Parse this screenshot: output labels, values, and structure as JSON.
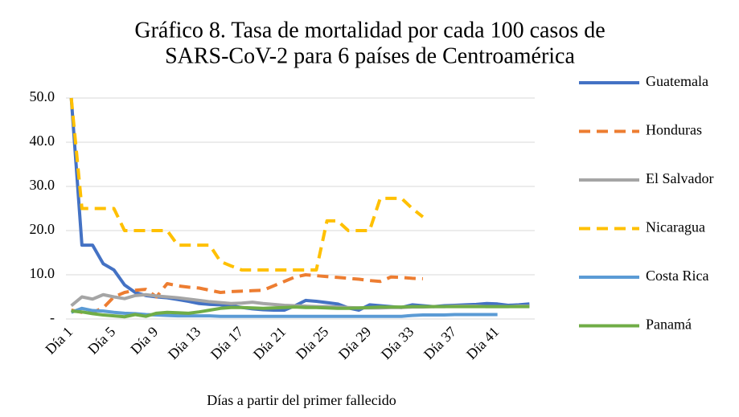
{
  "chart_data": {
    "type": "line",
    "title": [
      "Gráfico 8. Tasa de mortalidad por cada 100 casos de",
      "SARS-CoV-2 para 6 países de Centroamérica"
    ],
    "x_label": "Días a partir del primer fallecido",
    "categories": [
      "Día 1",
      null,
      null,
      null,
      "Día 5",
      null,
      null,
      null,
      "Día 9",
      null,
      null,
      null,
      "Día 13",
      null,
      null,
      null,
      "Día 17",
      null,
      null,
      null,
      "Día 21",
      null,
      null,
      null,
      "Día 25",
      null,
      null,
      null,
      "Día 29",
      null,
      null,
      null,
      "Día 33",
      null,
      null,
      null,
      "Día 37",
      null,
      null,
      null,
      "Día 41",
      null,
      null,
      null
    ],
    "ylim": [
      0,
      50
    ],
    "yticks": [
      {
        "value": 0,
        "label": "-"
      },
      {
        "value": 10,
        "label": "10.0"
      },
      {
        "value": 20,
        "label": "20.0"
      },
      {
        "value": 30,
        "label": "30.0"
      },
      {
        "value": 40,
        "label": "40.0"
      },
      {
        "value": 50,
        "label": "50.0"
      }
    ],
    "grid": true,
    "legend": "right",
    "series": [
      {
        "name": "Guatemala",
        "color": "#4472c4",
        "dashed": false,
        "values": [
          50,
          16.7,
          16.7,
          12.5,
          11.1,
          7.7,
          6,
          5.3,
          5,
          4.8,
          4.4,
          4,
          3.5,
          3.3,
          3.2,
          3,
          2.6,
          2.3,
          2.1,
          2,
          2,
          3,
          4.2,
          4,
          3.7,
          3.4,
          2.5,
          2,
          3.2,
          3,
          2.8,
          2.6,
          3.2,
          3,
          2.8,
          3,
          3.1,
          3.2,
          3.3,
          3.5,
          3.4,
          3.1,
          3.2,
          3.4
        ]
      },
      {
        "name": "Honduras",
        "color": "#ed7d31",
        "dashed": true,
        "values": [
          2,
          1.5,
          1.5,
          2.5,
          5,
          6,
          6.5,
          6.7,
          5,
          8,
          7.5,
          7.2,
          7,
          6.5,
          6,
          6.2,
          6.3,
          6.4,
          6.5,
          7.5,
          8.5,
          9.5,
          10,
          9.8,
          9.6,
          9.4,
          9.2,
          9,
          8.7,
          8.5,
          9.5,
          9.4,
          9.2,
          9.1,
          null,
          null,
          null,
          null,
          null,
          null,
          null,
          null,
          null,
          null
        ]
      },
      {
        "name": "El Salvador",
        "color": "#a5a5a5",
        "dashed": false,
        "values": [
          3,
          5,
          4.5,
          5.5,
          5,
          4.6,
          5.3,
          5.5,
          5.2,
          5,
          4.8,
          4.5,
          4.2,
          3.9,
          3.7,
          3.5,
          3.6,
          3.8,
          3.5,
          3.3,
          3.1,
          3,
          2.9,
          2.8,
          2.8,
          2.7,
          2.6,
          2.5,
          2.5,
          2.5,
          2.6,
          2.6,
          2.7,
          2.7,
          2.8,
          2.8,
          2.9,
          2.9,
          2.9,
          2.8,
          2.8,
          2.8,
          2.9,
          2.9
        ]
      },
      {
        "name": "Nicaragua",
        "color": "#ffc000",
        "dashed": true,
        "values": [
          50,
          25,
          25,
          25,
          25,
          20,
          20,
          20,
          20,
          20,
          16.7,
          16.7,
          16.7,
          16.7,
          13,
          12,
          11.1,
          11.1,
          11.1,
          11.1,
          11.1,
          11.1,
          11.1,
          11.1,
          22.2,
          22.2,
          20,
          20,
          20,
          27.3,
          27.3,
          27.3,
          25,
          23.1,
          null,
          null,
          null,
          null,
          null,
          null,
          null,
          null,
          null,
          null
        ]
      },
      {
        "name": "Costa Rica",
        "color": "#5b9bd5",
        "dashed": false,
        "values": [
          1.5,
          2.4,
          1.9,
          1.8,
          1.5,
          1.3,
          1.2,
          1,
          0.9,
          0.8,
          0.7,
          0.7,
          0.7,
          0.7,
          0.6,
          0.6,
          0.6,
          0.6,
          0.6,
          0.6,
          0.6,
          0.6,
          0.6,
          0.6,
          0.6,
          0.6,
          0.6,
          0.6,
          0.6,
          0.6,
          0.6,
          0.6,
          0.8,
          0.9,
          0.9,
          0.9,
          1,
          1,
          1,
          1,
          1,
          null,
          null,
          null
        ]
      },
      {
        "name": "Panamá",
        "color": "#70ad47",
        "dashed": false,
        "values": [
          1.8,
          1.6,
          1.2,
          0.9,
          0.7,
          0.5,
          1,
          0.6,
          1.3,
          1.5,
          1.4,
          1.3,
          1.6,
          2,
          2.4,
          2.6,
          2.6,
          2.5,
          2.4,
          2.5,
          2.6,
          2.7,
          2.6,
          2.6,
          2.5,
          2.4,
          2.4,
          2.5,
          2.6,
          2.7,
          2.7,
          2.7,
          2.8,
          2.8,
          2.8,
          2.8,
          2.8,
          2.8,
          2.8,
          2.8,
          2.8,
          2.8,
          2.8,
          2.8
        ]
      }
    ]
  }
}
